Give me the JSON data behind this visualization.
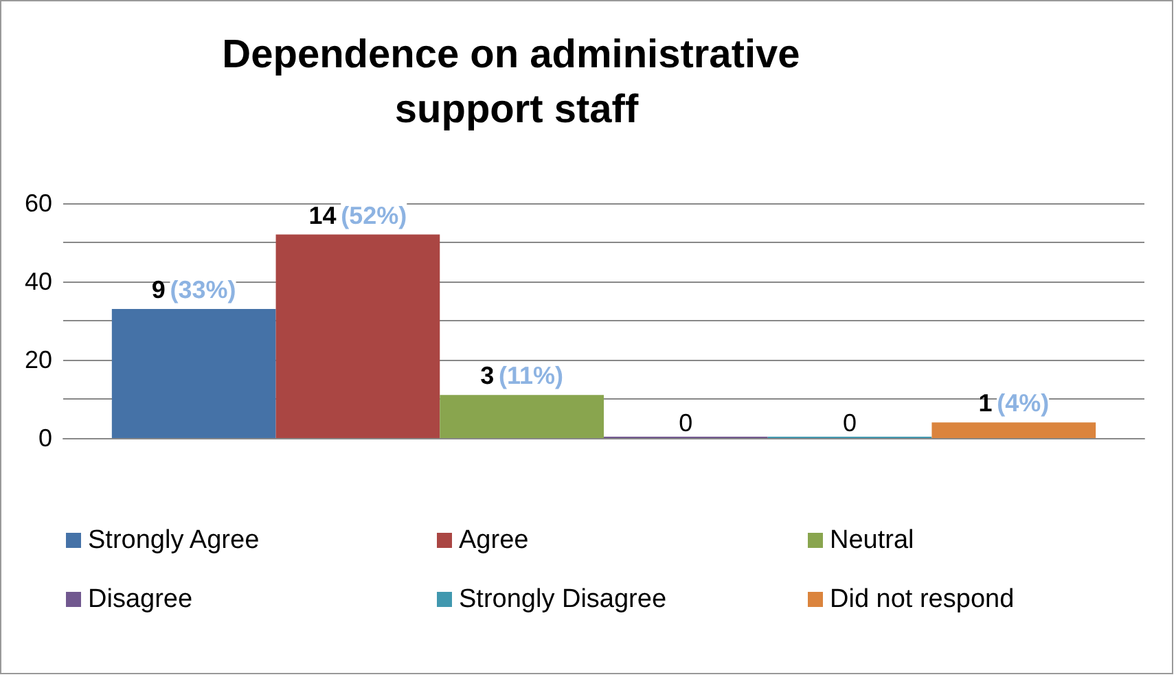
{
  "chart_data": {
    "type": "bar",
    "title": "Dependence on administrative support staff",
    "categories": [
      null
    ],
    "series": [
      {
        "name": "Strongly Agree",
        "color": "#4572a7",
        "values": [
          33
        ],
        "value_labels": [
          "9 (33%)"
        ]
      },
      {
        "name": "Agree",
        "color": "#aa4643",
        "values": [
          52
        ],
        "value_labels": [
          "14 (52%)"
        ]
      },
      {
        "name": "Neutral",
        "color": "#89a54e",
        "values": [
          11
        ],
        "value_labels": [
          "3 (11%)"
        ]
      },
      {
        "name": "Disagree",
        "color": "#71588f",
        "values": [
          0
        ],
        "value_labels": [
          "0"
        ]
      },
      {
        "name": "Strongly Disagree",
        "color": "#4198af",
        "values": [
          0
        ],
        "value_labels": [
          "0"
        ]
      },
      {
        "name": "Did not respond",
        "color": "#db843d",
        "values": [
          4
        ],
        "value_labels": [
          "1 (4%)"
        ]
      }
    ],
    "ylim": [
      0,
      60
    ],
    "yticks": [
      0,
      20,
      40,
      60
    ],
    "grid": "y",
    "legend": "bottom"
  }
}
